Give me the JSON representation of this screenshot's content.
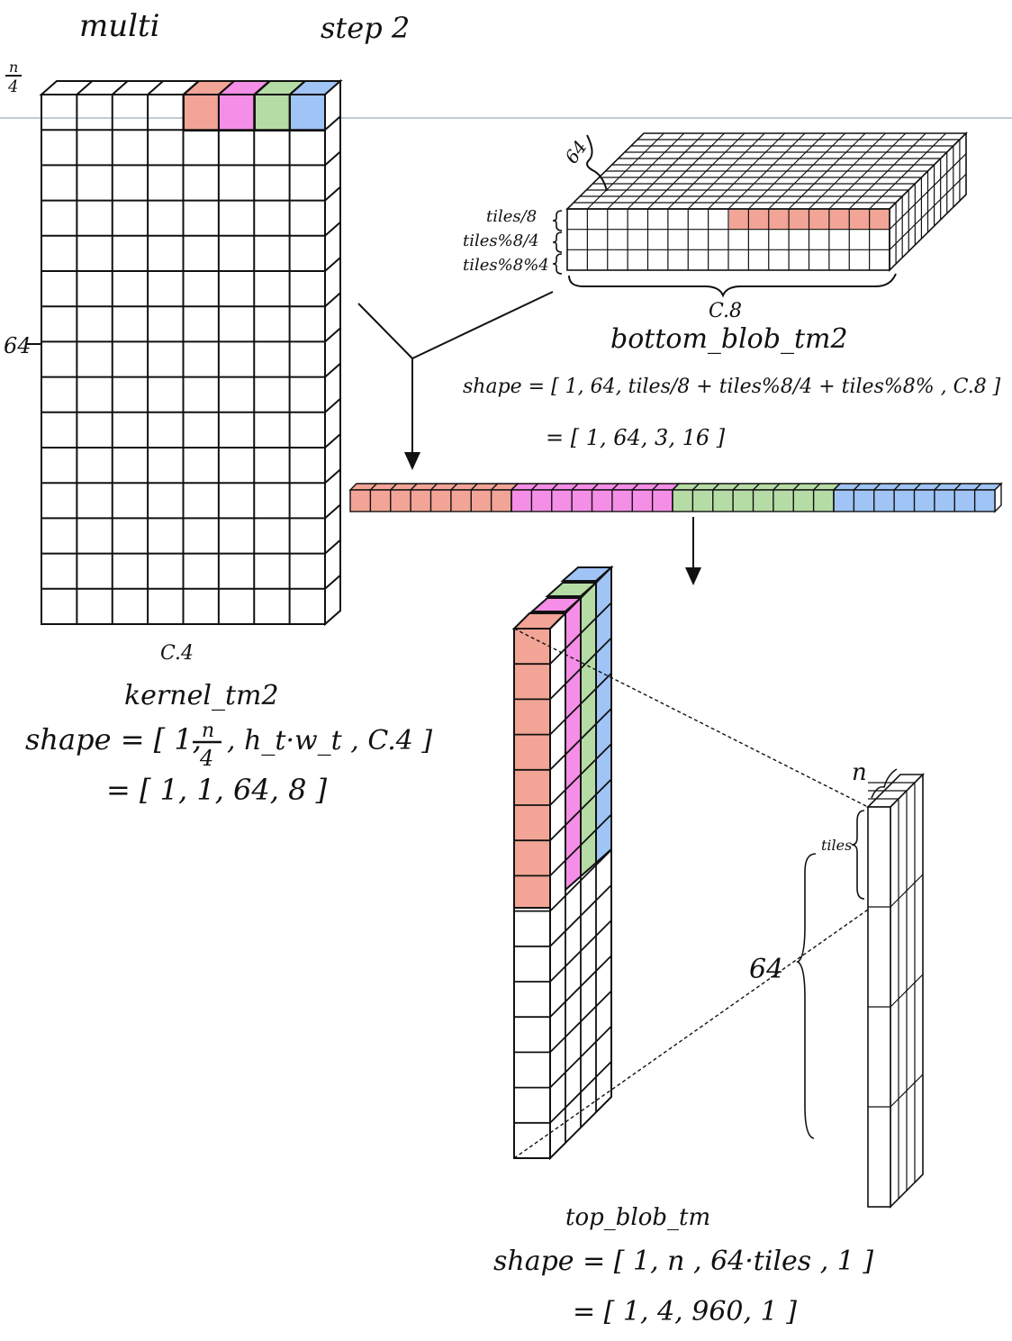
{
  "title": "multi",
  "step": "step 2",
  "colors": {
    "red": "#f2a496",
    "magenta": "#f58ee6",
    "green": "#b6dca6",
    "blue": "#9fc4f5",
    "line": "#111111",
    "rule": "#a9bcc6"
  },
  "kernel": {
    "n_over_4_num": "n",
    "n_over_4_den": "4",
    "rows_label": "64",
    "cols_label": "C.4",
    "name": "kernel_tm2",
    "shape_line1_a": "shape = [ 1,",
    "shape_line1_b": ", h_t·w_t , C.4 ]",
    "shape_line2": "= [ 1, 1, 64, 8 ]"
  },
  "bottom": {
    "depth_label": "64",
    "row_labels": [
      "tiles/8",
      "tiles%8/4",
      "tiles%8%4"
    ],
    "cols_label": "C.8",
    "name": "bottom_blob_tm2",
    "shape_line1": "shape = [ 1, 64, tiles/8 + tiles%8/4 + tiles%8% , C.8 ]",
    "shape_line2": "= [ 1, 64, 3, 16 ]"
  },
  "top": {
    "n_label": "n",
    "tiles_label": "tiles",
    "depth_label": "64",
    "name": "top_blob_tm",
    "shape_line1": "shape = [ 1, n , 64·tiles , 1 ]",
    "shape_line2": "= [ 1, 4, 960, 1 ]"
  }
}
